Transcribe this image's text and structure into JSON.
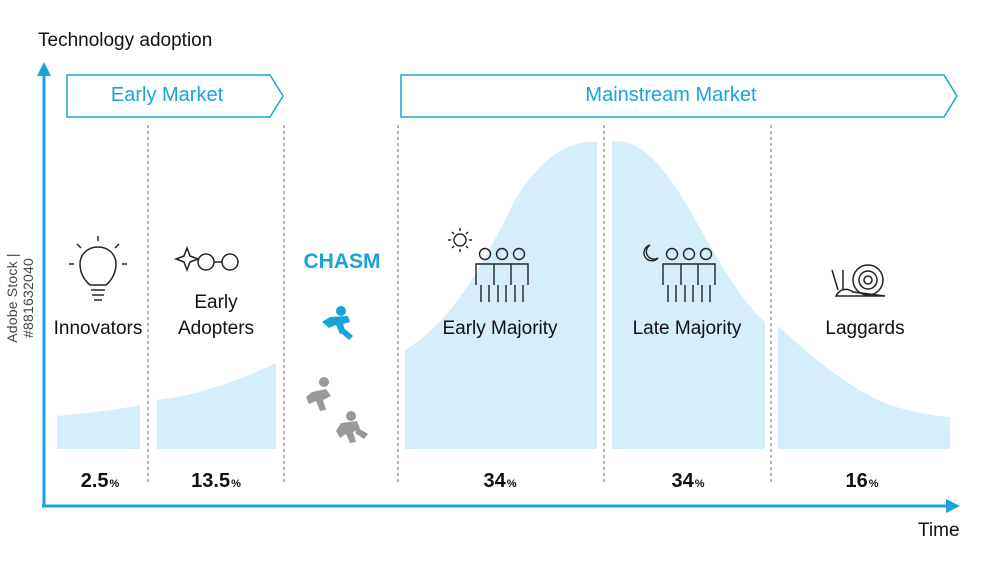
{
  "axes": {
    "y_label": "Technology adoption",
    "x_label": "Time"
  },
  "watermark": "Adobe Stock | #881632040",
  "banners": {
    "early": "Early Market",
    "mainstream": "Mainstream Market"
  },
  "chasm_label": "CHASM",
  "segments": [
    {
      "label": "Innovators",
      "percent": "2.5",
      "icon": "lightbulb-icon"
    },
    {
      "label": "Early Adopters",
      "percent": "13.5",
      "icon": "sparkle-glasses-icon"
    },
    {
      "label": "Early Majority",
      "percent": "34",
      "icon": "sun-people-icon"
    },
    {
      "label": "Late Majority",
      "percent": "34",
      "icon": "moon-people-icon"
    },
    {
      "label": "Laggards",
      "percent": "16",
      "icon": "snail-icon"
    }
  ],
  "percent_unit": "%",
  "colors": {
    "accent": "#1aa3d8",
    "fill": "#d6eef9",
    "gray": "#999999"
  }
}
